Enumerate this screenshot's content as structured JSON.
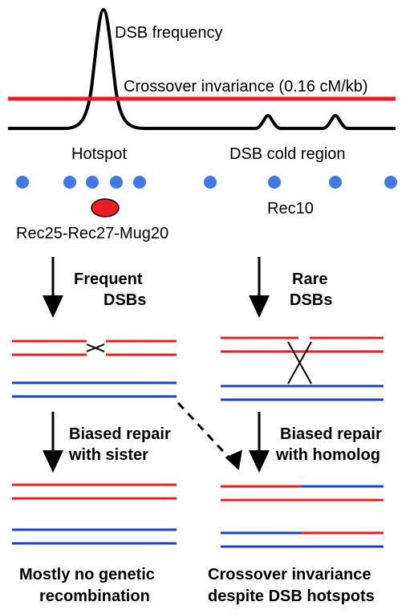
{
  "labels": {
    "dsb_frequency": "DSB frequency",
    "crossover_invariance": "Crossover invariance (0.16 cM/kb)",
    "hotspot": "Hotspot",
    "cold_region": "DSB cold region",
    "rec10": "Rec10",
    "complex": "Rec25-Rec27-Mug20"
  },
  "left": {
    "step1_line1": "Frequent",
    "step1_line2": "DSBs",
    "step2_line1": "Biased repair",
    "step2_line2": "with sister",
    "outcome_line1": "Mostly no genetic",
    "outcome_line2": "recombination"
  },
  "right": {
    "step1_line1": "Rare",
    "step1_line2": "DSBs",
    "step2_line1": "Biased repair",
    "step2_line2": "with homolog",
    "outcome_line1": "Crossover invariance",
    "outcome_line2": "despite DSB hotspots"
  },
  "colors": {
    "red": "#ee1c25",
    "blue": "#1a43c8",
    "dot": "#3d7ae8",
    "black": "#000000"
  }
}
